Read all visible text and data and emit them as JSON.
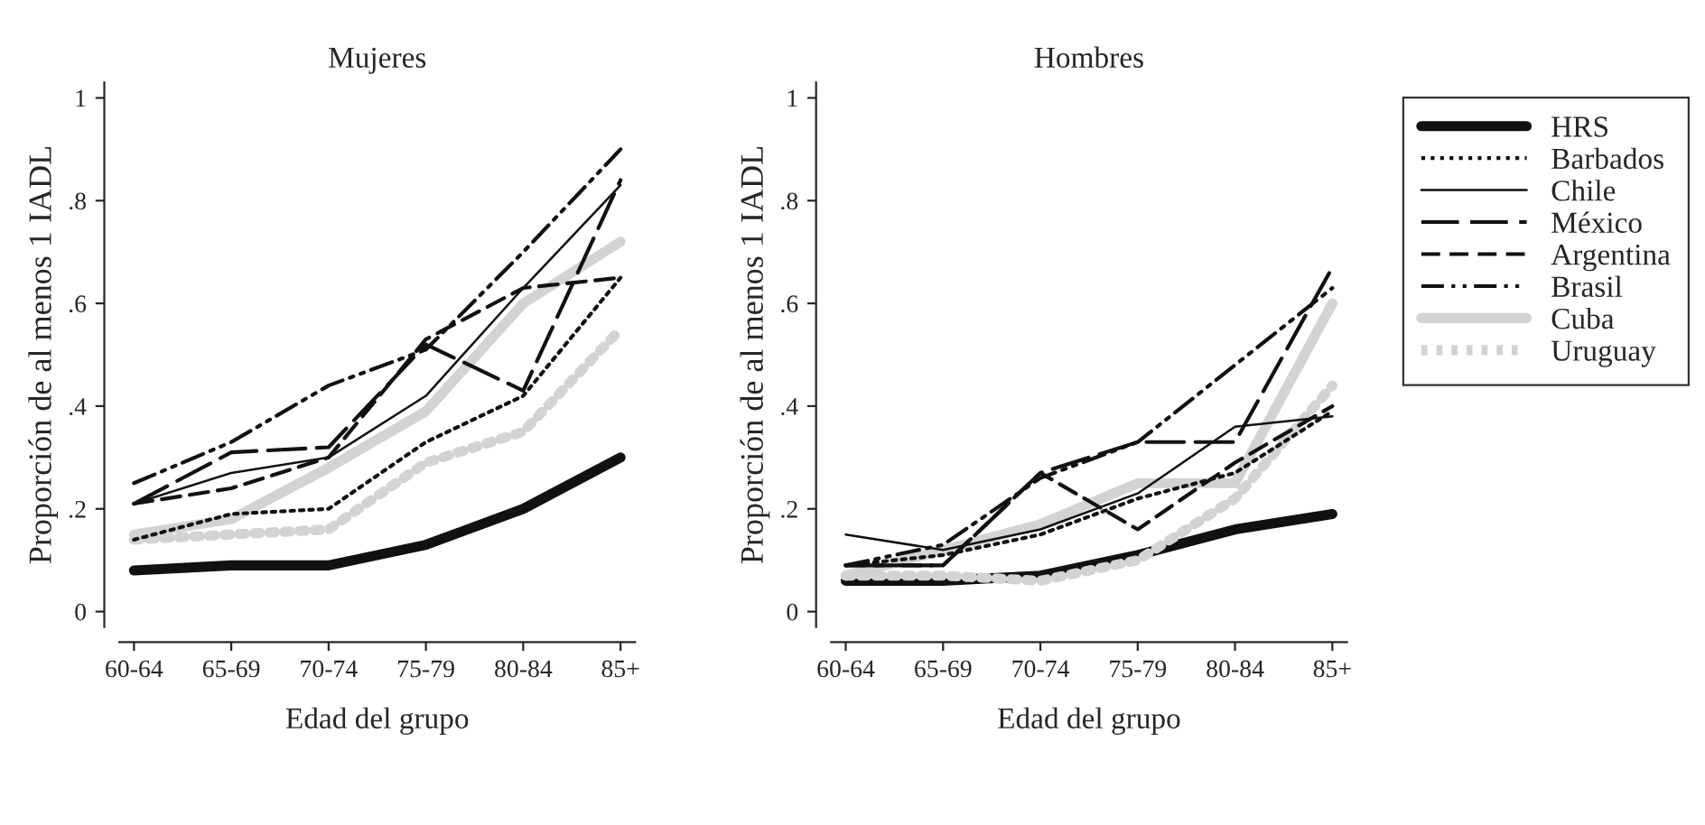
{
  "chart_data": [
    {
      "type": "line",
      "title": "Mujeres",
      "xlabel": "Edad del grupo",
      "ylabel": "Proporción de al menos 1 IADL",
      "categories": [
        "60-64",
        "65-69",
        "70-74",
        "75-79",
        "80-84",
        "85+"
      ],
      "ylim": [
        -0.03,
        1.03
      ],
      "yticks": [
        0,
        {
          "value": 0.2,
          "label": ".2"
        },
        {
          "value": 0.4,
          "label": ".4"
        },
        {
          "value": 0.6,
          "label": ".6"
        },
        {
          "value": 0.8,
          "label": ".8"
        },
        1
      ],
      "grid": false,
      "legend": false,
      "series": [
        {
          "color": "#111111",
          "line_style": "solid",
          "values": [
            0.08,
            0.09,
            0.09,
            0.13,
            0.2,
            0.3
          ]
        },
        {
          "color": "#111111",
          "line_style": "dotted",
          "values": [
            0.14,
            0.19,
            0.2,
            0.33,
            0.42,
            0.65
          ]
        },
        {
          "color": "#111111",
          "line_style": "solid",
          "values": [
            0.21,
            0.27,
            0.3,
            0.42,
            0.63,
            0.83
          ]
        },
        {
          "color": "#111111",
          "line_style": "long dashed",
          "values": [
            0.21,
            0.31,
            0.32,
            0.52,
            0.43,
            0.84
          ]
        },
        {
          "color": "#111111",
          "line_style": "dashed",
          "values": [
            0.21,
            0.24,
            0.3,
            0.53,
            0.63,
            0.65
          ]
        },
        {
          "color": "#111111",
          "line_style": "dashdotdot",
          "values": [
            0.25,
            0.33,
            0.44,
            0.51,
            0.7,
            0.9
          ]
        },
        {
          "color": "#d3d3d3",
          "line_style": "solid",
          "values": [
            0.15,
            0.18,
            0.28,
            0.39,
            0.6,
            0.72
          ]
        },
        {
          "color": "#d3d3d3",
          "line_style": "dotted",
          "values": [
            0.14,
            0.15,
            0.16,
            0.29,
            0.35,
            0.55
          ]
        }
      ]
    },
    {
      "type": "line",
      "title": "Hombres",
      "xlabel": "Edad del grupo",
      "ylabel": "Proporción de al menos 1 IADL",
      "categories": [
        "60-64",
        "65-69",
        "70-74",
        "75-79",
        "80-84",
        "85+"
      ],
      "ylim": [
        -0.03,
        1.03
      ],
      "yticks": [
        0,
        {
          "value": 0.2,
          "label": ".2"
        },
        {
          "value": 0.4,
          "label": ".4"
        },
        {
          "value": 0.6,
          "label": ".6"
        },
        {
          "value": 0.8,
          "label": ".8"
        },
        1
      ],
      "grid": false,
      "legend": "right",
      "series": [
        {
          "name": "HRS",
          "color": "#111111",
          "line_style": "solid",
          "values": [
            0.06,
            0.06,
            0.07,
            0.11,
            0.16,
            0.19
          ]
        },
        {
          "name": "Barbados",
          "color": "#111111",
          "line_style": "dotted",
          "values": [
            0.09,
            0.11,
            0.15,
            0.22,
            0.27,
            0.39
          ]
        },
        {
          "name": "Chile",
          "color": "#111111",
          "line_style": "solid",
          "values": [
            0.15,
            0.12,
            0.16,
            0.23,
            0.36,
            0.38
          ]
        },
        {
          "name": "México",
          "color": "#111111",
          "line_style": "long dashed",
          "values": [
            0.09,
            0.09,
            0.27,
            0.33,
            0.33,
            0.67
          ]
        },
        {
          "name": "Argentina",
          "color": "#111111",
          "line_style": "dashed",
          "values": [
            0.09,
            0.09,
            0.27,
            0.16,
            0.29,
            0.4
          ]
        },
        {
          "name": "Brasil",
          "color": "#111111",
          "line_style": "dashdotdot",
          "values": [
            0.09,
            0.13,
            0.26,
            0.33,
            0.48,
            0.63
          ]
        },
        {
          "name": "Cuba",
          "color": "#d3d3d3",
          "line_style": "solid",
          "values": [
            0.07,
            0.12,
            0.17,
            0.25,
            0.25,
            0.6
          ]
        },
        {
          "name": "Uruguay",
          "color": "#d3d3d3",
          "line_style": "dotted",
          "values": [
            0.07,
            0.07,
            0.06,
            0.1,
            0.22,
            0.44
          ]
        }
      ]
    }
  ]
}
